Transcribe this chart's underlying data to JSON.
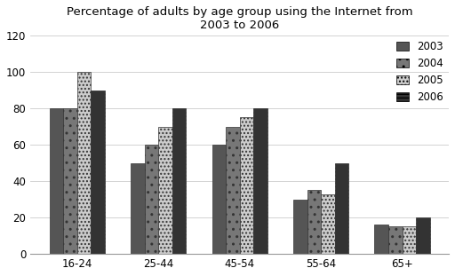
{
  "title": "Percentage of adults by age group using the Internet from\n2003 to 2006",
  "categories": [
    "16-24",
    "25-44",
    "45-54",
    "55-64",
    "65+"
  ],
  "years": [
    "2003",
    "2004",
    "2005",
    "2006"
  ],
  "values": {
    "2003": [
      80,
      50,
      60,
      30,
      16
    ],
    "2004": [
      80,
      60,
      70,
      35,
      15
    ],
    "2005": [
      100,
      70,
      75,
      33,
      15
    ],
    "2006": [
      90,
      80,
      80,
      50,
      20
    ]
  },
  "ylim": [
    0,
    120
  ],
  "yticks": [
    0,
    20,
    40,
    60,
    80,
    100,
    120
  ],
  "bar_colors_fill": [
    "#555555",
    "#888888",
    "#cccccc",
    "#444444"
  ],
  "hatch_patterns": [
    "",
    "..",
    "",
    "----"
  ],
  "background_color": "#ffffff",
  "title_fontsize": 9.5,
  "tick_fontsize": 8.5,
  "legend_fontsize": 8.5,
  "bar_width": 0.17
}
